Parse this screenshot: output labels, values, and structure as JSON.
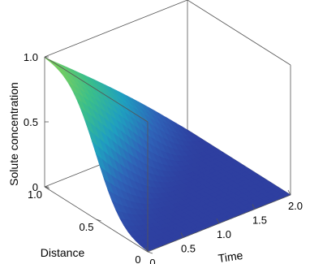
{
  "chart_data": {
    "type": "surface",
    "zlabel": "Solute concentration",
    "xlabel": "Distance",
    "ylabel": "Time",
    "x_range": [
      0,
      1
    ],
    "y_range": [
      0,
      2
    ],
    "z_range": [
      0,
      1
    ],
    "x_ticks": [
      "0",
      "0.5",
      "1.0"
    ],
    "y_ticks": [
      "0",
      "0.5",
      "1.0",
      "1.5",
      "2.0"
    ],
    "z_ticks": [
      "0",
      "0.5",
      "1.0"
    ],
    "box": true,
    "colormap": [
      "#2e3fa0",
      "#2f63b8",
      "#1f9fc0",
      "#3bbf8a",
      "#7fd05a"
    ],
    "surface_samples": {
      "distance": [
        0,
        0.25,
        0.5,
        0.75,
        1.0
      ],
      "time": [
        0,
        0.5,
        1.0,
        1.5,
        2.0
      ],
      "concentration_at_time_0": [
        0,
        0.15,
        0.5,
        0.85,
        1.0
      ],
      "concentration_at_time_2": [
        0,
        0,
        0,
        0,
        0
      ]
    }
  }
}
